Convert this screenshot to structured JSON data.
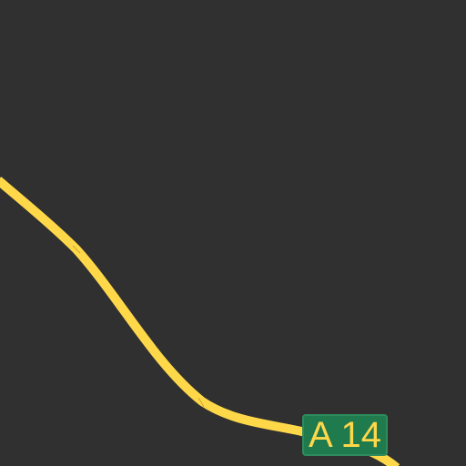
{
  "map": {
    "background_color": "#303030",
    "road": {
      "ref": "A 14",
      "stroke_color": "#ffd84a",
      "shield_background": "#1f7a4d",
      "shield_text_color": "#ffd84a"
    }
  }
}
